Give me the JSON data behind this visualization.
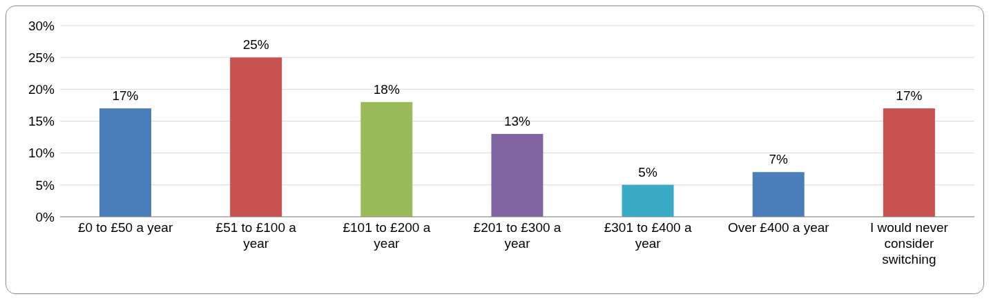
{
  "chart_data": {
    "type": "bar",
    "categories": [
      "£0 to £50 a year",
      "£51 to £100 a year",
      "£101 to £200 a year",
      "£201 to £300 a year",
      "£301 to £400 a year",
      "Over £400 a year",
      "I would never consider switching"
    ],
    "values": [
      17,
      25,
      18,
      13,
      5,
      7,
      17
    ],
    "colors": [
      "#4a7ebb",
      "#c9514f",
      "#9bbb59",
      "#8064a2",
      "#3aabc5",
      "#4a7ebb",
      "#c9514f"
    ],
    "value_labels": [
      "17%",
      "25%",
      "18%",
      "13%",
      "5%",
      "7%",
      "17%"
    ],
    "ylim": [
      0,
      30
    ],
    "yticks": [
      {
        "value": 0,
        "label": "0%"
      },
      {
        "value": 5,
        "label": "5%"
      },
      {
        "value": 10,
        "label": "10%"
      },
      {
        "value": 15,
        "label": "15%"
      },
      {
        "value": 20,
        "label": "20%"
      },
      {
        "value": 25,
        "label": "25%"
      },
      {
        "value": 30,
        "label": "30%"
      }
    ],
    "grid": "y",
    "legend": false
  }
}
